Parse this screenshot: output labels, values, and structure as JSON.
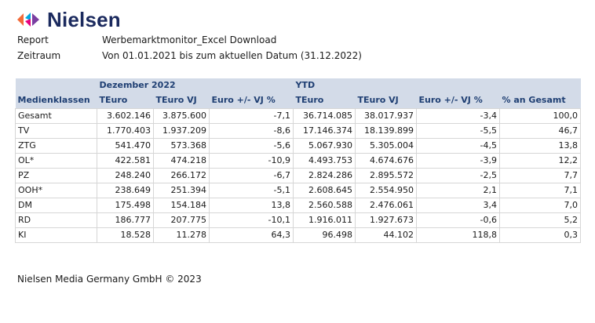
{
  "brand": {
    "name": "Nielsen",
    "colors": {
      "wordmark": "#1b2a5e",
      "header_band": "#d3dbe8",
      "header_text": "#1f3f73"
    },
    "icon": "nielsen-logo-icon"
  },
  "meta": {
    "report_label": "Report",
    "report_value": "Werbemarktmonitor_Excel Download",
    "period_label": "Zeitraum",
    "period_value": "Von 01.01.2021 bis zum aktuellen Datum (31.12.2022)"
  },
  "table": {
    "group_headers": {
      "month": "Dezember 2022",
      "ytd": "YTD"
    },
    "columns": [
      "Medienklassen",
      "TEuro",
      "TEuro VJ",
      "Euro +/- VJ %",
      "TEuro",
      "TEuro VJ",
      "Euro +/- VJ %",
      "% an Gesamt"
    ],
    "rows": [
      [
        "Gesamt",
        "3.602.146",
        "3.875.600",
        "-7,1",
        "36.714.085",
        "38.017.937",
        "-3,4",
        "100,0"
      ],
      [
        "TV",
        "1.770.403",
        "1.937.209",
        "-8,6",
        "17.146.374",
        "18.139.899",
        "-5,5",
        "46,7"
      ],
      [
        "ZTG",
        "541.470",
        "573.368",
        "-5,6",
        "5.067.930",
        "5.305.004",
        "-4,5",
        "13,8"
      ],
      [
        "OL*",
        "422.581",
        "474.218",
        "-10,9",
        "4.493.753",
        "4.674.676",
        "-3,9",
        "12,2"
      ],
      [
        "PZ",
        "248.240",
        "266.172",
        "-6,7",
        "2.824.286",
        "2.895.572",
        "-2,5",
        "7,7"
      ],
      [
        "OOH*",
        "238.649",
        "251.394",
        "-5,1",
        "2.608.645",
        "2.554.950",
        "2,1",
        "7,1"
      ],
      [
        "DM",
        "175.498",
        "154.184",
        "13,8",
        "2.560.588",
        "2.476.061",
        "3,4",
        "7,0"
      ],
      [
        "RD",
        "186.777",
        "207.775",
        "-10,1",
        "1.916.011",
        "1.927.673",
        "-0,6",
        "5,2"
      ],
      [
        "KI",
        "18.528",
        "11.278",
        "64,3",
        "96.498",
        "44.102",
        "118,8",
        "0,3"
      ]
    ]
  },
  "footer": {
    "text": "Nielsen Media Germany GmbH © 2023"
  }
}
